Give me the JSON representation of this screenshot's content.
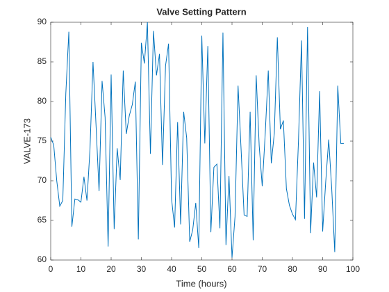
{
  "chart_data": {
    "type": "line",
    "title": "Valve Setting Pattern",
    "x_label": "Time (hours)",
    "y_label": "VALVE-173",
    "x": [
      0,
      1,
      2,
      3,
      4,
      5,
      6,
      7,
      8,
      9,
      10,
      11,
      12,
      13,
      14,
      15,
      16,
      17,
      18,
      19,
      20,
      21,
      22,
      23,
      24,
      25,
      26,
      27,
      28,
      29,
      30,
      31,
      32,
      33,
      34,
      35,
      36,
      37,
      38,
      39,
      40,
      41,
      42,
      43,
      44,
      45,
      46,
      47,
      48,
      49,
      50,
      51,
      52,
      53,
      54,
      55,
      56,
      57,
      58,
      59,
      60,
      61,
      62,
      63,
      64,
      65,
      66,
      67,
      68,
      69,
      70,
      71,
      72,
      73,
      74,
      75,
      76,
      77,
      78,
      79,
      80,
      81,
      82,
      83,
      84,
      85,
      86,
      87,
      88,
      89,
      90,
      91,
      92,
      93,
      94,
      95,
      96,
      97
    ],
    "series": [
      {
        "name": "VALVE-173",
        "color": "#0072bd",
        "values": [
          75.5,
          74.5,
          70,
          66.8,
          67.5,
          81,
          88.8,
          64.2,
          67.7,
          67.6,
          67.3,
          70.5,
          67.5,
          74,
          85,
          77,
          68.7,
          82.6,
          78,
          61.7,
          83.4,
          63.9,
          74.1,
          70.1,
          83.9,
          75.9,
          78.2,
          79.6,
          82.5,
          62.6,
          87.4,
          84.8,
          90,
          73.4,
          88.9,
          83.3,
          86,
          72,
          84.5,
          87.3,
          67.7,
          64.1,
          77.4,
          64.5,
          78.7,
          75.4,
          62.3,
          63.8,
          67.2,
          61.5,
          88.3,
          74.7,
          87,
          63.5,
          71.7,
          72.1,
          64,
          88.7,
          61.9,
          70.6,
          60.3,
          65.5,
          82,
          74,
          65.7,
          65.5,
          78.7,
          62.5,
          83.3,
          74.4,
          69.3,
          76,
          83.9,
          72.2,
          76,
          88.1,
          76.5,
          77.6,
          69,
          66.9,
          65.8,
          65.1,
          75.1,
          87.7,
          65.2,
          89.4,
          63.4,
          72.3,
          67.9,
          81.3,
          63.6,
          69.8,
          75.2,
          69,
          61,
          82,
          74.7,
          74.7
        ]
      }
    ],
    "xlim": [
      0,
      100
    ],
    "xticks": [
      0,
      10,
      20,
      30,
      40,
      50,
      60,
      70,
      80,
      90,
      100
    ],
    "ylim": [
      60,
      90
    ],
    "yticks": [
      60,
      65,
      70,
      75,
      80,
      85,
      90
    ]
  }
}
